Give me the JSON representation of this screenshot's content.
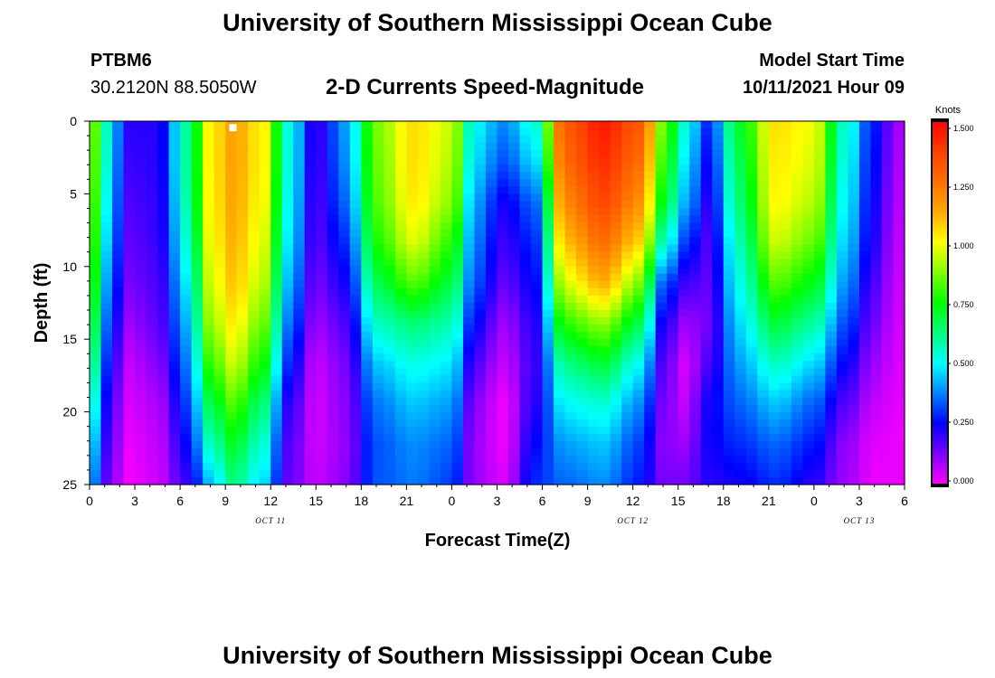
{
  "page": {
    "top_title": "University of Southern Mississippi Ocean Cube",
    "bottom_title": "University of Southern Mississippi Ocean Cube",
    "station_id": "PTBM6",
    "coordinates": "30.2120N  88.5050W",
    "subtitle": "2-D Currents Speed-Magnitude",
    "model_start_label": "Model Start Time",
    "model_start_value": "10/11/2021 Hour 09"
  },
  "chart_data": {
    "type": "heatmap",
    "title": "2-D Currents Speed-Magnitude",
    "xlabel": "Forecast Time(Z)",
    "ylabel": "Depth (ft)",
    "x_range_hours": [
      0,
      54
    ],
    "y_range_ft": [
      0,
      25
    ],
    "x_ticks": [
      {
        "hour": 0,
        "label": "0"
      },
      {
        "hour": 3,
        "label": "3"
      },
      {
        "hour": 6,
        "label": "6"
      },
      {
        "hour": 9,
        "label": "9"
      },
      {
        "hour": 12,
        "label": "12"
      },
      {
        "hour": 15,
        "label": "15"
      },
      {
        "hour": 18,
        "label": "18"
      },
      {
        "hour": 21,
        "label": "21"
      },
      {
        "hour": 24,
        "label": "0"
      },
      {
        "hour": 27,
        "label": "3"
      },
      {
        "hour": 30,
        "label": "6"
      },
      {
        "hour": 33,
        "label": "9"
      },
      {
        "hour": 36,
        "label": "12"
      },
      {
        "hour": 39,
        "label": "15"
      },
      {
        "hour": 42,
        "label": "18"
      },
      {
        "hour": 45,
        "label": "21"
      },
      {
        "hour": 48,
        "label": "0"
      },
      {
        "hour": 51,
        "label": "3"
      },
      {
        "hour": 54,
        "label": "6"
      }
    ],
    "date_labels": [
      {
        "hour": 12,
        "label": "OCT 11"
      },
      {
        "hour": 36,
        "label": "OCT 12"
      },
      {
        "hour": 51,
        "label": "OCT 13"
      }
    ],
    "y_ticks": [
      {
        "depth": 0,
        "label": "0"
      },
      {
        "depth": 5,
        "label": "5"
      },
      {
        "depth": 10,
        "label": "10"
      },
      {
        "depth": 15,
        "label": "15"
      },
      {
        "depth": 20,
        "label": "20"
      },
      {
        "depth": 25,
        "label": "25"
      }
    ],
    "colorbar": {
      "unit": "Knots",
      "range": [
        0,
        1.55
      ],
      "ticks": [
        "0.000",
        "0.250",
        "0.500",
        "0.750",
        "1.000",
        "1.250",
        "1.500"
      ],
      "colors": [
        "#ff00ff",
        "#8000ff",
        "#0000ff",
        "#0080ff",
        "#00ffff",
        "#00ff80",
        "#00ff00",
        "#80ff00",
        "#ffff00",
        "#ffaa00",
        "#ff7000",
        "#ff4000",
        "#ff0000"
      ]
    },
    "profile_columns": [
      {
        "hour": 0.0,
        "speeds": [
          0.95,
          0.94,
          0.92,
          0.9,
          0.86,
          0.8,
          0.72,
          0.62,
          0.52,
          0.44
        ]
      },
      {
        "hour": 1.2,
        "speeds": [
          0.58,
          0.56,
          0.52,
          0.48,
          0.42,
          0.36,
          0.3,
          0.24,
          0.2,
          0.16
        ]
      },
      {
        "hour": 2.5,
        "speeds": [
          0.22,
          0.2,
          0.18,
          0.16,
          0.14,
          0.1,
          0.06,
          0.04,
          0.02,
          0.01
        ]
      },
      {
        "hour": 4.5,
        "speeds": [
          0.22,
          0.22,
          0.21,
          0.2,
          0.18,
          0.16,
          0.12,
          0.08,
          0.06,
          0.05
        ]
      },
      {
        "hour": 6.5,
        "speeds": [
          0.62,
          0.62,
          0.6,
          0.56,
          0.5,
          0.44,
          0.38,
          0.32,
          0.26,
          0.2
        ]
      },
      {
        "hour": 8.0,
        "speeds": [
          1.05,
          1.05,
          1.04,
          1.02,
          0.98,
          0.92,
          0.82,
          0.7,
          0.58,
          0.44
        ]
      },
      {
        "hour": 9.5,
        "speeds": [
          1.18,
          1.18,
          1.17,
          1.15,
          1.12,
          1.06,
          0.98,
          0.86,
          0.74,
          0.64
        ]
      },
      {
        "hour": 11.5,
        "speeds": [
          1.05,
          1.05,
          1.03,
          1.0,
          0.96,
          0.88,
          0.78,
          0.66,
          0.56,
          0.48
        ]
      },
      {
        "hour": 13.2,
        "speeds": [
          0.55,
          0.55,
          0.53,
          0.5,
          0.45,
          0.38,
          0.3,
          0.22,
          0.18,
          0.16
        ]
      },
      {
        "hour": 15.0,
        "speeds": [
          0.2,
          0.19,
          0.18,
          0.17,
          0.14,
          0.1,
          0.06,
          0.05,
          0.05,
          0.06
        ]
      },
      {
        "hour": 17.0,
        "speeds": [
          0.42,
          0.4,
          0.36,
          0.3,
          0.24,
          0.18,
          0.14,
          0.12,
          0.11,
          0.12
        ]
      },
      {
        "hour": 19.0,
        "speeds": [
          0.9,
          0.88,
          0.86,
          0.8,
          0.7,
          0.58,
          0.46,
          0.38,
          0.34,
          0.34
        ]
      },
      {
        "hour": 21.5,
        "speeds": [
          1.08,
          1.08,
          1.06,
          1.0,
          0.86,
          0.66,
          0.54,
          0.46,
          0.4,
          0.38
        ]
      },
      {
        "hour": 24.0,
        "speeds": [
          0.98,
          0.96,
          0.92,
          0.82,
          0.72,
          0.6,
          0.5,
          0.42,
          0.36,
          0.32
        ]
      },
      {
        "hour": 25.5,
        "speeds": [
          0.52,
          0.48,
          0.42,
          0.38,
          0.34,
          0.26,
          0.18,
          0.12,
          0.1,
          0.1
        ]
      },
      {
        "hour": 27.5,
        "speeds": [
          0.4,
          0.34,
          0.24,
          0.2,
          0.16,
          0.1,
          0.06,
          0.02,
          0.02,
          0.04
        ]
      },
      {
        "hour": 29.5,
        "speeds": [
          0.56,
          0.48,
          0.36,
          0.3,
          0.26,
          0.22,
          0.2,
          0.22,
          0.26,
          0.3
        ]
      },
      {
        "hour": 31.5,
        "speeds": [
          1.36,
          1.32,
          1.24,
          1.14,
          1.0,
          0.82,
          0.64,
          0.52,
          0.42,
          0.36
        ]
      },
      {
        "hour": 34.0,
        "speeds": [
          1.5,
          1.46,
          1.4,
          1.3,
          1.16,
          0.92,
          0.72,
          0.56,
          0.46,
          0.4
        ]
      },
      {
        "hour": 36.5,
        "speeds": [
          1.36,
          1.3,
          1.22,
          1.1,
          0.9,
          0.7,
          0.52,
          0.4,
          0.32,
          0.28
        ]
      },
      {
        "hour": 38.0,
        "speeds": [
          0.9,
          0.84,
          0.76,
          0.6,
          0.36,
          0.24,
          0.18,
          0.14,
          0.12,
          0.14
        ]
      },
      {
        "hour": 39.5,
        "speeds": [
          0.56,
          0.5,
          0.44,
          0.32,
          0.2,
          0.1,
          0.04,
          0.06,
          0.1,
          0.14
        ]
      },
      {
        "hour": 41.0,
        "speeds": [
          0.3,
          0.26,
          0.22,
          0.18,
          0.16,
          0.14,
          0.18,
          0.24,
          0.24,
          0.22
        ]
      },
      {
        "hour": 43.0,
        "speeds": [
          0.74,
          0.7,
          0.66,
          0.6,
          0.54,
          0.48,
          0.42,
          0.36,
          0.3,
          0.24
        ]
      },
      {
        "hour": 45.5,
        "speeds": [
          1.08,
          1.06,
          1.04,
          0.98,
          0.86,
          0.72,
          0.58,
          0.46,
          0.36,
          0.3
        ]
      },
      {
        "hour": 48.0,
        "speeds": [
          1.02,
          1.0,
          0.96,
          0.88,
          0.76,
          0.62,
          0.48,
          0.36,
          0.28,
          0.22
        ]
      },
      {
        "hour": 50.0,
        "speeds": [
          0.58,
          0.55,
          0.52,
          0.48,
          0.42,
          0.34,
          0.26,
          0.18,
          0.12,
          0.1
        ]
      },
      {
        "hour": 52.0,
        "speeds": [
          0.28,
          0.26,
          0.24,
          0.22,
          0.18,
          0.14,
          0.1,
          0.06,
          0.03,
          0.02
        ]
      },
      {
        "hour": 53.5,
        "speeds": [
          0.1,
          0.09,
          0.08,
          0.07,
          0.06,
          0.05,
          0.04,
          0.03,
          0.02,
          0.02
        ]
      },
      {
        "hour": 54.0,
        "speeds": [
          0.06,
          0.06,
          0.05,
          0.05,
          0.04,
          0.04,
          0.03,
          0.02,
          0.02,
          0.02
        ]
      }
    ],
    "profile_depths_ft": [
      0,
      2.8,
      5.6,
      8.3,
      11.1,
      13.9,
      16.7,
      19.4,
      22.2,
      25
    ],
    "marker": {
      "hour": 9.5,
      "depth": 0.2,
      "color": "#ffffff"
    }
  }
}
